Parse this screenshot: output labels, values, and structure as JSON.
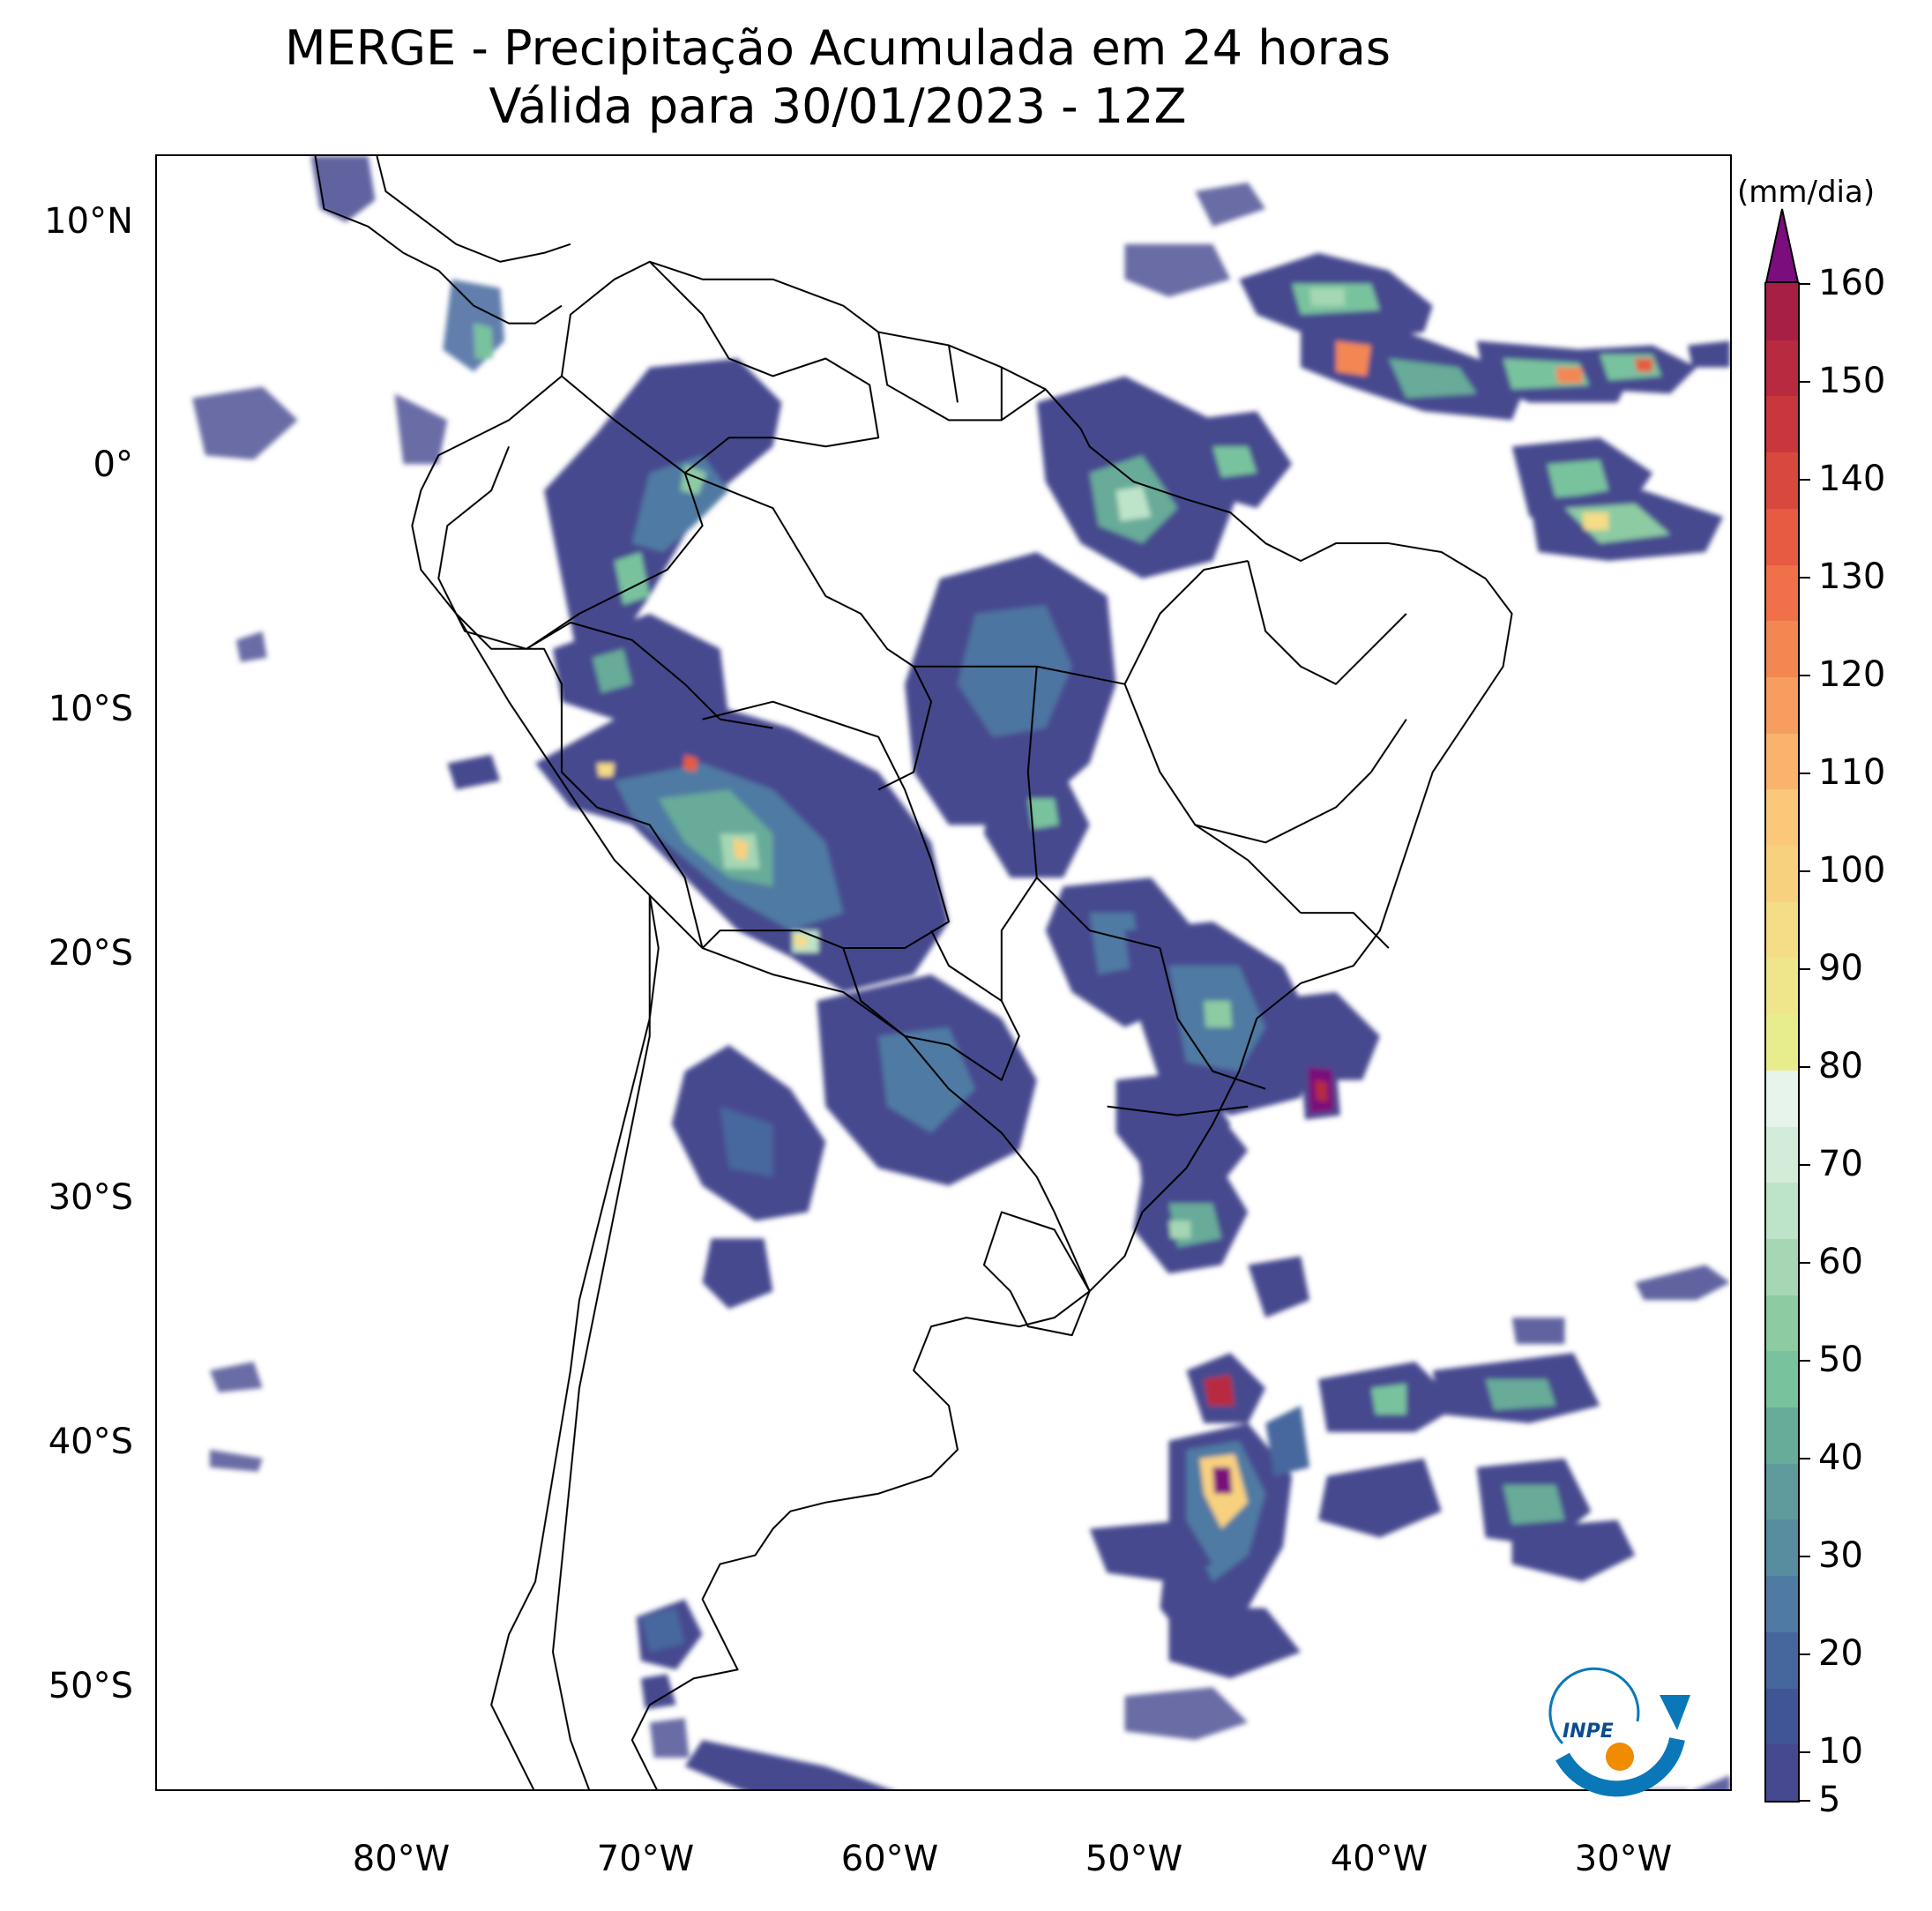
{
  "title": {
    "line1": "MERGE - Precipitação Acumulada em 24 horas",
    "line2": "Válida para 30/01/2023 - 12Z"
  },
  "axes": {
    "lat_labels": [
      "10°N",
      "0°",
      "10°S",
      "20°S",
      "30°S",
      "40°S",
      "50°S"
    ],
    "lon_labels": [
      "80°W",
      "70°W",
      "60°W",
      "50°W",
      "40°W",
      "30°W"
    ]
  },
  "colorbar": {
    "unit": "(mm/dia)",
    "labels": [
      "5",
      "10",
      "20",
      "30",
      "40",
      "50",
      "60",
      "70",
      "80",
      "90",
      "100",
      "110",
      "120",
      "130",
      "140",
      "150",
      "160"
    ],
    "colors": [
      "#46498f",
      "#3f5595",
      "#46679e",
      "#4f7aa3",
      "#588c9f",
      "#5f9a9c",
      "#67ab99",
      "#79c29e",
      "#8dcba3",
      "#a5d7b4",
      "#bde3c8",
      "#d2ecd9",
      "#e6f4ec",
      "#e7ec8d",
      "#efe58a",
      "#f5dc86",
      "#f8d17f",
      "#fbc779",
      "#f9b36c",
      "#f69d5f",
      "#f38752",
      "#ef7049",
      "#e65b41",
      "#d8483e",
      "#c9373d",
      "#b82a40",
      "#a71f45"
    ],
    "extend_color": "#7c0d7c"
  },
  "logo": {
    "text": "INPE"
  }
}
